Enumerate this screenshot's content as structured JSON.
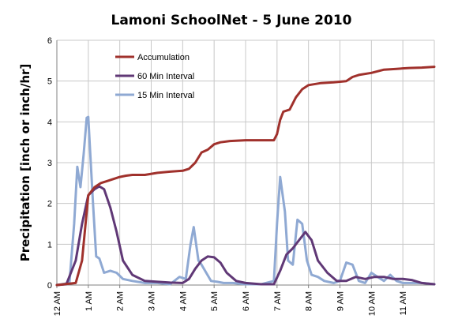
{
  "chart_data": {
    "type": "line",
    "title": "Lamoni SchoolNet - 5 June 2010",
    "ylabel": "Precipitation  [inch or inch/hr]",
    "xlabel": "",
    "ylim": [
      0,
      6
    ],
    "yticks": [
      "0",
      "1",
      "2",
      "3",
      "4",
      "5",
      "6"
    ],
    "xlim": [
      0,
      24
    ],
    "xticks": [
      "12 AM",
      "1 AM",
      "2 AM",
      "3 AM",
      "4 AM",
      "5 AM",
      "6 AM",
      "7 AM",
      "8 AM",
      "9 AM",
      "10 AM",
      "11 AM"
    ],
    "grid": true,
    "legend_position": "top-left",
    "series": [
      {
        "name": "Accumulation",
        "color": "#a0312c",
        "x": [
          0,
          0.6,
          0.8,
          1.0,
          1.2,
          1.4,
          1.6,
          1.8,
          2.0,
          2.2,
          2.4,
          2.8,
          3.2,
          3.6,
          4.0,
          4.2,
          4.4,
          4.6,
          4.8,
          5.0,
          5.2,
          5.5,
          6.0,
          6.5,
          6.9,
          7.0,
          7.1,
          7.2,
          7.4,
          7.6,
          7.8,
          8.0,
          8.4,
          8.8,
          9.2,
          9.4,
          9.6,
          10.0,
          10.4,
          10.8,
          11.2,
          11.6,
          12.0
        ],
        "y": [
          0,
          0.05,
          0.6,
          2.2,
          2.4,
          2.5,
          2.55,
          2.6,
          2.65,
          2.68,
          2.7,
          2.7,
          2.75,
          2.78,
          2.8,
          2.85,
          3.0,
          3.25,
          3.32,
          3.45,
          3.5,
          3.53,
          3.55,
          3.55,
          3.55,
          3.7,
          4.05,
          4.25,
          4.3,
          4.6,
          4.8,
          4.9,
          4.95,
          4.97,
          5.0,
          5.1,
          5.15,
          5.2,
          5.28,
          5.3,
          5.32,
          5.33,
          5.35
        ]
      },
      {
        "name": "60 Min Interval",
        "color": "#603876",
        "x": [
          0,
          0.3,
          0.6,
          0.8,
          1.0,
          1.2,
          1.35,
          1.5,
          1.7,
          1.9,
          2.1,
          2.4,
          2.8,
          3.2,
          3.6,
          4.0,
          4.2,
          4.4,
          4.6,
          4.8,
          5.0,
          5.2,
          5.4,
          5.7,
          6.0,
          6.5,
          6.9,
          7.1,
          7.3,
          7.5,
          7.7,
          7.9,
          8.1,
          8.3,
          8.6,
          8.9,
          9.2,
          9.5,
          9.8,
          10.1,
          10.4,
          10.7,
          11.0,
          11.3,
          11.6,
          12.0
        ],
        "y": [
          0,
          0.02,
          0.6,
          1.5,
          2.2,
          2.35,
          2.42,
          2.35,
          1.9,
          1.3,
          0.6,
          0.25,
          0.1,
          0.08,
          0.06,
          0.05,
          0.15,
          0.4,
          0.6,
          0.7,
          0.68,
          0.55,
          0.3,
          0.1,
          0.05,
          0.02,
          0.02,
          0.35,
          0.75,
          0.9,
          1.1,
          1.3,
          1.1,
          0.6,
          0.3,
          0.1,
          0.1,
          0.2,
          0.15,
          0.2,
          0.2,
          0.15,
          0.15,
          0.12,
          0.05,
          0.02
        ]
      },
      {
        "name": "15 Min Interval",
        "color": "#8fa9d3",
        "x": [
          0,
          0.4,
          0.55,
          0.65,
          0.75,
          0.85,
          0.95,
          1.0,
          1.05,
          1.15,
          1.25,
          1.35,
          1.5,
          1.7,
          1.9,
          2.1,
          2.4,
          2.8,
          3.2,
          3.6,
          3.9,
          4.1,
          4.25,
          4.35,
          4.5,
          4.6,
          4.75,
          4.9,
          5.1,
          5.3,
          5.6,
          6.0,
          6.5,
          6.9,
          7.0,
          7.1,
          7.25,
          7.35,
          7.5,
          7.65,
          7.8,
          7.95,
          8.1,
          8.3,
          8.5,
          8.8,
          9.0,
          9.2,
          9.4,
          9.6,
          9.8,
          10.0,
          10.2,
          10.4,
          10.6,
          10.8,
          11.0,
          11.3,
          11.6,
          12.0
        ],
        "y": [
          0,
          0.05,
          1.5,
          2.9,
          2.4,
          3.2,
          4.1,
          4.12,
          3.4,
          2.0,
          0.7,
          0.65,
          0.3,
          0.35,
          0.3,
          0.15,
          0.1,
          0.05,
          0.05,
          0.02,
          0.2,
          0.15,
          1.0,
          1.42,
          0.6,
          0.5,
          0.3,
          0.1,
          0.08,
          0.05,
          0.05,
          0.02,
          0.02,
          0.1,
          1.5,
          2.65,
          1.8,
          0.6,
          0.5,
          1.6,
          1.5,
          0.6,
          0.25,
          0.2,
          0.1,
          0.05,
          0.1,
          0.55,
          0.5,
          0.1,
          0.05,
          0.3,
          0.2,
          0.1,
          0.25,
          0.1,
          0.05,
          0.05,
          0.05,
          0.02
        ]
      }
    ]
  }
}
